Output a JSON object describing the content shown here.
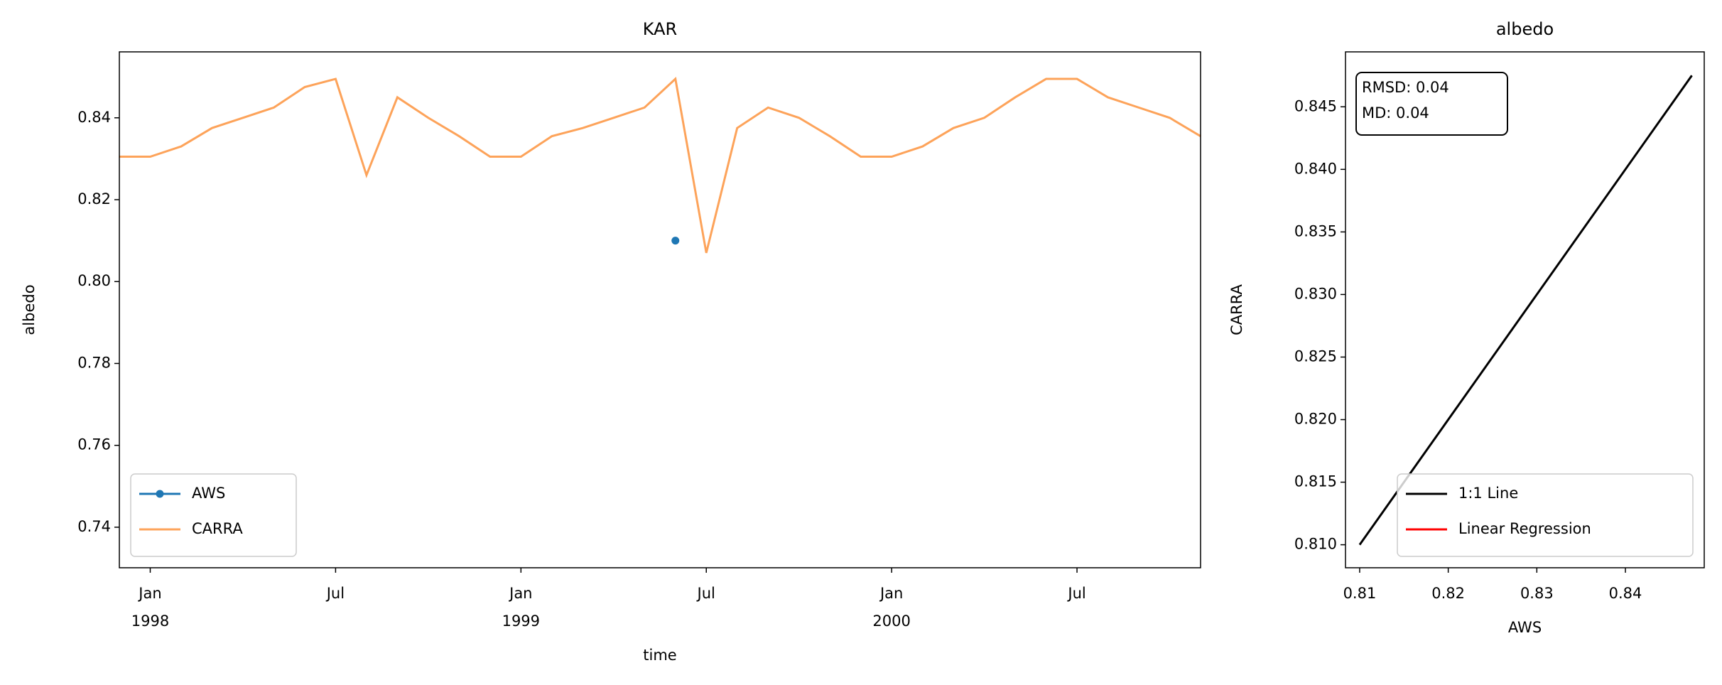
{
  "chart_data": [
    {
      "type": "line",
      "title": "KAR",
      "xlabel": "time",
      "ylabel": "albedo",
      "x": [
        "1997-12",
        "1998-01",
        "1998-02",
        "1998-03",
        "1998-04",
        "1998-05",
        "1998-06",
        "1998-07",
        "1998-08",
        "1998-09",
        "1998-10",
        "1998-11",
        "1998-12",
        "1999-01",
        "1999-02",
        "1999-03",
        "1999-04",
        "1999-05",
        "1999-06",
        "1999-07",
        "1999-08",
        "1999-09",
        "1999-10",
        "1999-11",
        "1999-12",
        "2000-01",
        "2000-02",
        "2000-03",
        "2000-04",
        "2000-05",
        "2000-06",
        "2000-07",
        "2000-08",
        "2000-09",
        "2000-10",
        "2000-11"
      ],
      "series": [
        {
          "name": "AWS",
          "color": "#1f77b4",
          "marker": true,
          "values": [
            null,
            null,
            null,
            null,
            null,
            null,
            null,
            null,
            null,
            null,
            null,
            null,
            null,
            null,
            null,
            null,
            null,
            null,
            0.81,
            null,
            null,
            null,
            null,
            null,
            null,
            null,
            null,
            null,
            null,
            null,
            null,
            null,
            null,
            null,
            null,
            null
          ]
        },
        {
          "name": "CARRA",
          "color": "#fda35a",
          "marker": false,
          "values": [
            0.8305,
            0.8305,
            0.833,
            0.8375,
            0.84,
            0.8425,
            0.8475,
            0.8495,
            0.826,
            0.845,
            0.84,
            0.8355,
            0.8305,
            0.8305,
            0.8355,
            0.8375,
            0.84,
            0.8425,
            0.8495,
            0.807,
            0.8375,
            0.8425,
            0.84,
            0.8355,
            0.8305,
            0.8305,
            0.833,
            0.8375,
            0.84,
            0.845,
            0.8495,
            0.8495,
            0.845,
            0.8425,
            0.84,
            0.8355
          ]
        }
      ],
      "xlim": [
        "1997-12",
        "2000-11"
      ],
      "xticks": [
        {
          "value": "1998-01",
          "label": "Jan\n1998"
        },
        {
          "value": "1998-07",
          "label": "Jul"
        },
        {
          "value": "1999-01",
          "label": "Jan\n1999"
        },
        {
          "value": "1999-07",
          "label": "Jul"
        },
        {
          "value": "2000-01",
          "label": "Jan\n2000"
        },
        {
          "value": "2000-07",
          "label": "Jul"
        }
      ],
      "ylim": [
        0.7301,
        0.8561
      ],
      "yticks": [
        0.74,
        0.76,
        0.78,
        {
          "value": 0.8,
          "label": "0.80"
        },
        0.82,
        0.84
      ],
      "legend": "lower left",
      "grid": false
    },
    {
      "type": "line",
      "title": "albedo",
      "xlabel": "AWS",
      "ylabel": "CARRA",
      "series": [
        {
          "name": "1:1 Line",
          "color": "#000000",
          "marker": false,
          "x": [
            0.81,
            0.8475
          ],
          "values": [
            0.81,
            0.8475
          ]
        },
        {
          "name": "Linear Regression",
          "color": "#ff0000",
          "marker": false,
          "x": [],
          "values": []
        }
      ],
      "annotations": [
        "RMSD: 0.04",
        "MD: 0.04"
      ],
      "xlim": [
        0.8084,
        0.8489
      ],
      "xticks": [
        0.81,
        0.82,
        0.83,
        0.84
      ],
      "ylim": [
        0.80816,
        0.84939
      ],
      "yticks": [
        {
          "value": 0.81,
          "label": "0.810"
        },
        0.815,
        {
          "value": 0.82,
          "label": "0.820"
        },
        0.825,
        {
          "value": 0.83,
          "label": "0.830"
        },
        0.835,
        {
          "value": 0.84,
          "label": "0.840"
        },
        0.845
      ],
      "legend": "lower right",
      "grid": false
    }
  ]
}
